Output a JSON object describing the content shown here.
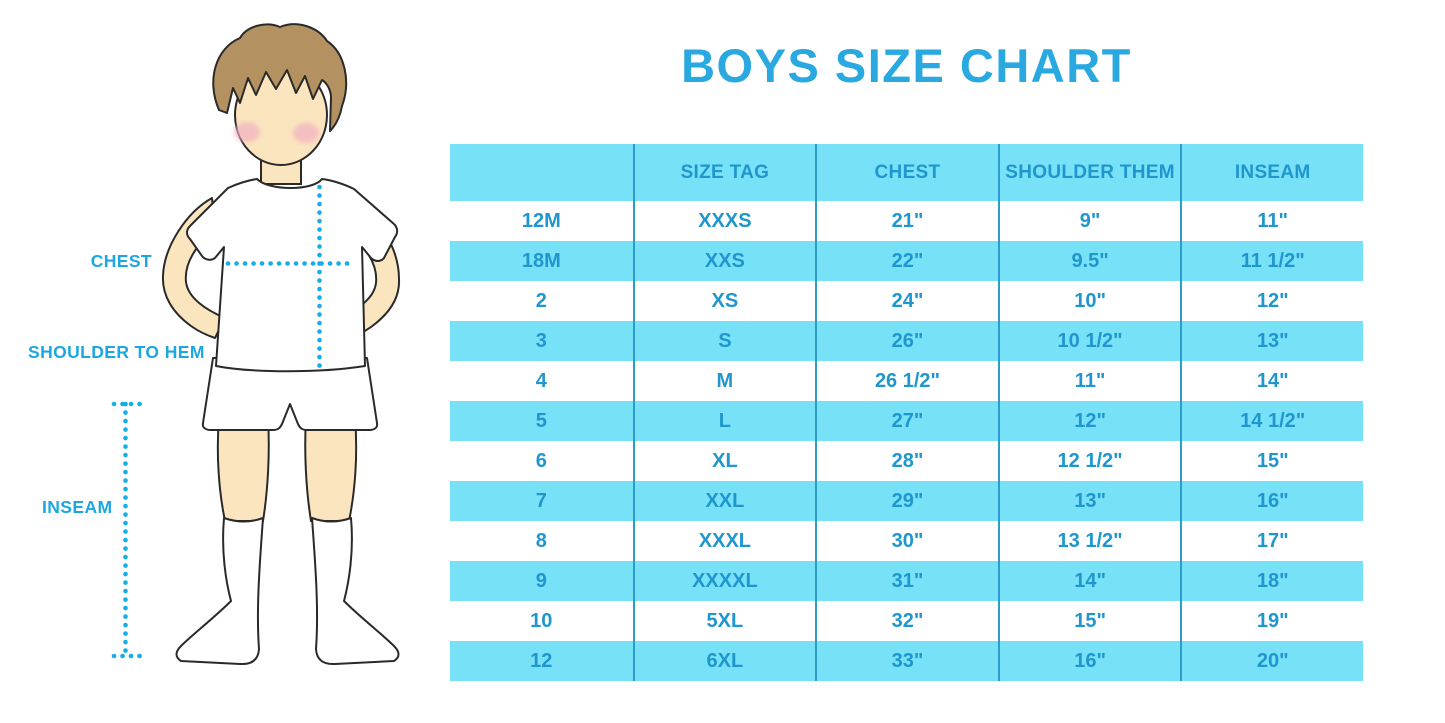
{
  "title": "BOYS SIZE CHART",
  "illustration": {
    "labels": {
      "chest": "CHEST",
      "shoulder_to_hem": "SHOULDER TO HEM",
      "inseam": "INSEAM"
    }
  },
  "colors": {
    "title_blue": "#29A9E0",
    "label_blue": "#1CA7E0",
    "table_text_blue": "#1F96CD",
    "row_cyan": "#77E1F8",
    "column_divider_blue": "#2D9CCB",
    "dotted_line_cyan": "#17ADE6",
    "skin": "#FAE5BE",
    "hair_brown": "#B39160",
    "blush_pink": "#F2AEC2"
  },
  "chart_data": {
    "type": "table",
    "title": "BOYS SIZE CHART",
    "columns": [
      "",
      "SIZE TAG",
      "CHEST",
      "SHOULDER THEM",
      "INSEAM"
    ],
    "rows": [
      [
        "12M",
        "XXXS",
        "21\"",
        "9\"",
        "11\""
      ],
      [
        "18M",
        "XXS",
        "22\"",
        "9.5\"",
        "11 1/2\""
      ],
      [
        "2",
        "XS",
        "24\"",
        "10\"",
        "12\""
      ],
      [
        "3",
        "S",
        "26\"",
        "10 1/2\"",
        "13\""
      ],
      [
        "4",
        "M",
        "26 1/2\"",
        "11\"",
        "14\""
      ],
      [
        "5",
        "L",
        "27\"",
        "12\"",
        "14 1/2\""
      ],
      [
        "6",
        "XL",
        "28\"",
        "12 1/2\"",
        "15\""
      ],
      [
        "7",
        "XXL",
        "29\"",
        "13\"",
        "16\""
      ],
      [
        "8",
        "XXXL",
        "30\"",
        "13 1/2\"",
        "17\""
      ],
      [
        "9",
        "XXXXL",
        "31\"",
        "14\"",
        "18\""
      ],
      [
        "10",
        "5XL",
        "32\"",
        "15\"",
        "19\""
      ],
      [
        "12",
        "6XL",
        "33\"",
        "16\"",
        "20\""
      ]
    ],
    "layout": {
      "striping": "alternating white and cyan rows, header cyan",
      "grid": "vertical column dividers only"
    }
  }
}
